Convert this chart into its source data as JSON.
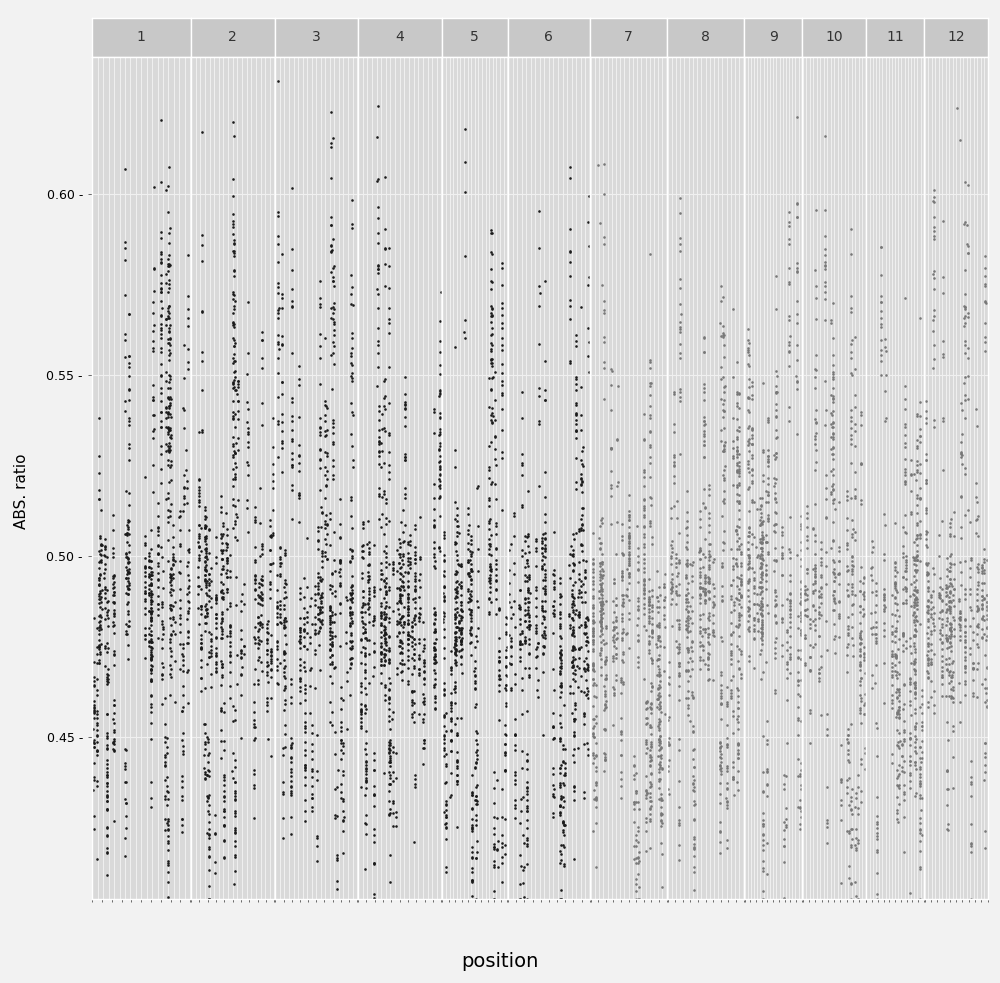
{
  "xlabel": "position",
  "ylabel": "ABS. ratio",
  "chromosomes": [
    1,
    2,
    3,
    4,
    5,
    6,
    7,
    8,
    9,
    10,
    11,
    12
  ],
  "ylim": [
    0.405,
    0.638
  ],
  "yticks": [
    0.45,
    0.5,
    0.55,
    0.6
  ],
  "ytick_labels": [
    "0.45 -",
    "0.50 -",
    "0.55 -",
    "0.60 -"
  ],
  "bg_color": "#d9d9d9",
  "outer_bg": "#f2f2f2",
  "strip_bg_color": "#c8c8c8",
  "strip_text_color": "#333333",
  "grid_color": "#f0f0f0",
  "dot_color_dark": "#1a1a1a",
  "dot_color_light": "#777777",
  "dot_size": 3.5,
  "seed": 1234,
  "chr_rel_widths": [
    1.05,
    0.9,
    0.88,
    0.9,
    0.7,
    0.88,
    0.82,
    0.82,
    0.62,
    0.68,
    0.62,
    0.68
  ]
}
